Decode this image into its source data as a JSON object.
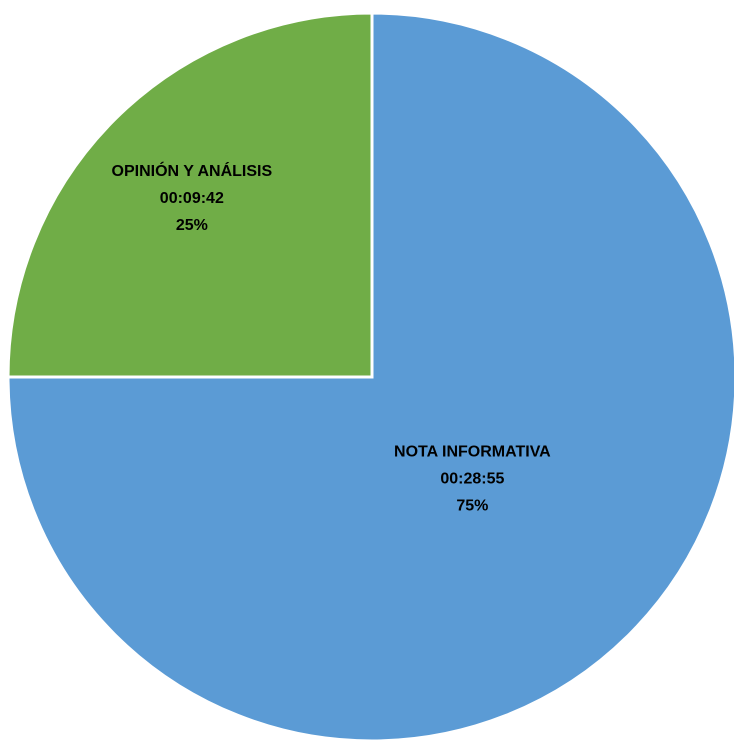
{
  "chart_data": {
    "type": "pie",
    "title": "",
    "slices": [
      {
        "label": "NOTA INFORMATIVA",
        "time": "00:28:55",
        "percent_label": "75%",
        "value": 75,
        "color": "#5b9bd5"
      },
      {
        "label": "OPINIÓN Y ANÁLISIS",
        "time": "00:09:42",
        "percent_label": "25%",
        "value": 25,
        "color": "#70ad47"
      }
    ],
    "start_angle": "12 o'clock",
    "direction": "clockwise",
    "legend": "none"
  }
}
